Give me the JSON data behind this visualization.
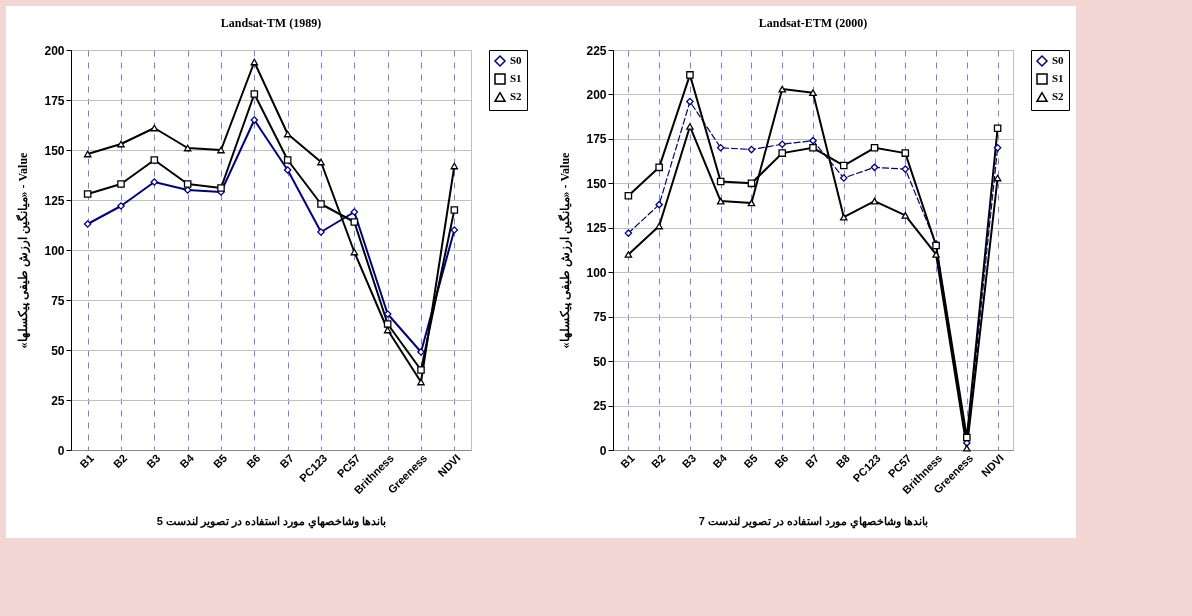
{
  "chart_data": [
    {
      "type": "line",
      "title": "Landsat-TM (1989)",
      "xlabel": "باندها وشاخصهاي مورد استفاده در تصوير لندست 5",
      "ylabel": "«میانگین ارزش طیفی پیکسلها»  -  Value",
      "categories": [
        "B1",
        "B2",
        "B3",
        "B4",
        "B5",
        "B6",
        "B7",
        "PC123",
        "PC57",
        "Brithness",
        "Greeness",
        "NDVI"
      ],
      "ylim": [
        0,
        200
      ],
      "yticks": [
        0,
        25,
        50,
        75,
        100,
        125,
        150,
        175,
        200
      ],
      "grid": true,
      "legend": "right",
      "series": [
        {
          "name": "S0",
          "color": "#000080",
          "marker": "diamond",
          "line_style": "solid",
          "values": [
            113,
            122,
            134,
            130,
            129,
            165,
            140,
            109,
            119,
            68,
            49,
            110
          ]
        },
        {
          "name": "S1",
          "color": "#000000",
          "marker": "square",
          "line_style": "solid",
          "values": [
            128,
            133,
            145,
            133,
            131,
            178,
            145,
            123,
            114,
            63,
            40,
            120
          ]
        },
        {
          "name": "S2",
          "color": "#000000",
          "marker": "triangle",
          "line_style": "solid",
          "values": [
            148,
            153,
            161,
            151,
            150,
            194,
            158,
            144,
            99,
            60,
            34,
            142
          ]
        }
      ]
    },
    {
      "type": "line",
      "title": "Landsat-ETM (2000)",
      "xlabel": "باندها وشاخصهاي مورد استفاده در تصوير لندست 7",
      "ylabel": "«میانگین ارزش طیفی پیکسلها»  -  Value",
      "categories": [
        "B1",
        "B2",
        "B3",
        "B4",
        "B5",
        "B6",
        "B7",
        "B8",
        "PC123",
        "PC57",
        "Brithness",
        "Greeness",
        "NDVI"
      ],
      "ylim": [
        0,
        225
      ],
      "yticks": [
        0,
        25,
        50,
        75,
        100,
        125,
        150,
        175,
        200,
        225
      ],
      "grid": true,
      "legend": "right",
      "series": [
        {
          "name": "S0",
          "color": "#000080",
          "marker": "diamond",
          "line_style": "dashed",
          "values": [
            122,
            138,
            196,
            170,
            169,
            172,
            174,
            153,
            159,
            158,
            116,
            4,
            170
          ]
        },
        {
          "name": "S1",
          "color": "#000000",
          "marker": "square",
          "line_style": "solid",
          "values": [
            143,
            159,
            211,
            151,
            150,
            167,
            170,
            160,
            170,
            167,
            115,
            7,
            181
          ]
        },
        {
          "name": "S2",
          "color": "#000000",
          "marker": "triangle",
          "line_style": "solid",
          "values": [
            110,
            126,
            182,
            140,
            139,
            203,
            201,
            131,
            140,
            132,
            110,
            1,
            153
          ]
        }
      ]
    }
  ]
}
